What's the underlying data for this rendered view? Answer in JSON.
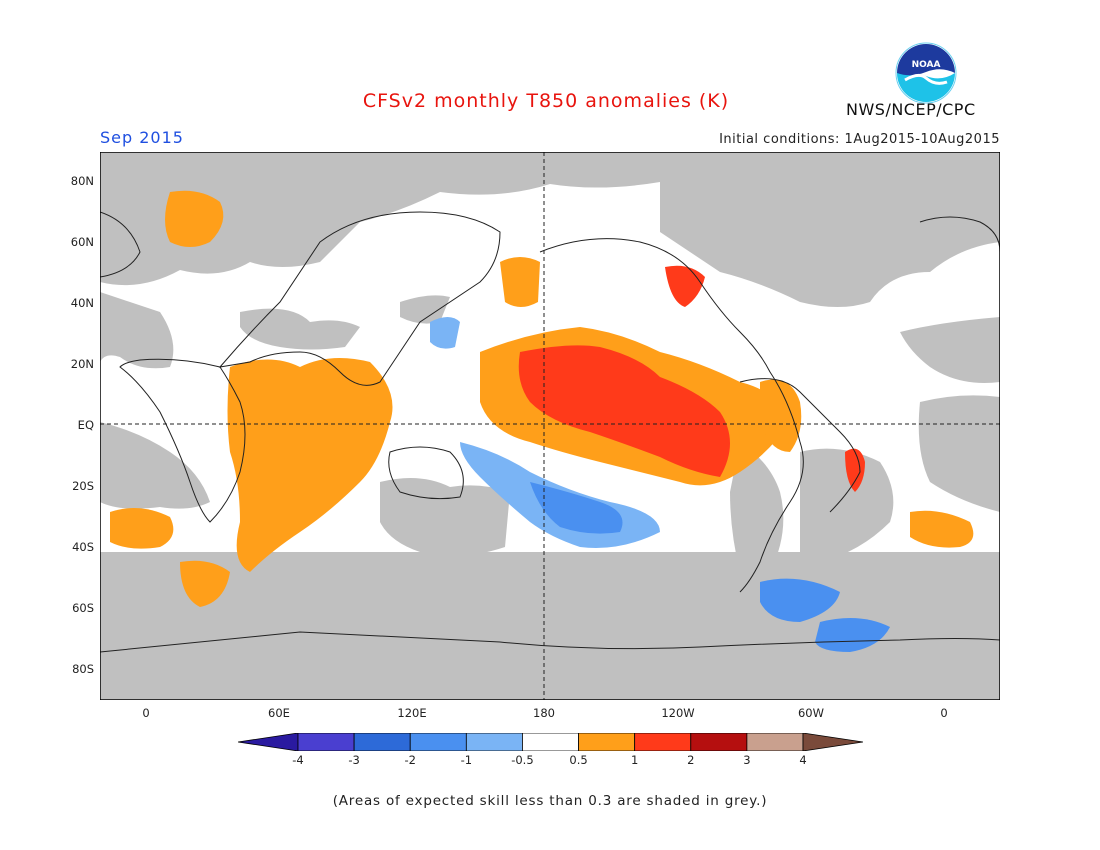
{
  "title": "CFSv2 monthly T850 anomalies (K)",
  "month": "Sep 2015",
  "initial_conditions": "Initial conditions: 1Aug2015-10Aug2015",
  "org": "NWS/NCEP/CPC",
  "logo_text": "NOAA",
  "lat_labels": [
    "80N",
    "60N",
    "40N",
    "20N",
    "EQ",
    "20S",
    "40S",
    "60S",
    "80S"
  ],
  "lon_labels": [
    "0",
    "60E",
    "120E",
    "180",
    "120W",
    "60W",
    "0"
  ],
  "colorbar": {
    "labels": [
      "-4",
      "-3",
      "-2",
      "-1",
      "-0.5",
      "0.5",
      "1",
      "2",
      "3",
      "4"
    ],
    "colors": [
      "#2a1aa0",
      "#4a3fd0",
      "#2d6ad8",
      "#4a90f0",
      "#7ab4f5",
      "#ffffff",
      "#ff9f1a",
      "#ff3a1a",
      "#b50f0f",
      "#c9a08e",
      "#7a4a3a"
    ]
  },
  "note": "(Areas of expected skill less than 0.3 are shaded in grey.)",
  "colors": {
    "grey": "#c0c0c0",
    "orange": "#ff9f1a",
    "red": "#ff3a1a",
    "lightblue": "#7ab4f5",
    "blue": "#4a90f0",
    "darkblue": "#2d6ad8"
  }
}
